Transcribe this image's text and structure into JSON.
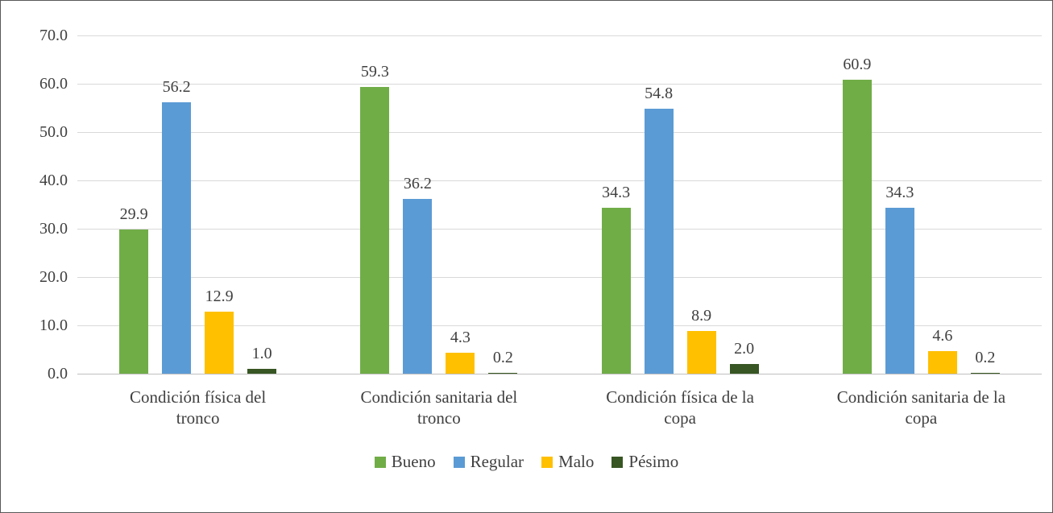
{
  "chart_data": {
    "type": "bar",
    "categories": [
      "Condición física del tronco",
      "Condición sanitaria del tronco",
      "Condición física de la copa",
      "Condición sanitaria de la copa"
    ],
    "series": [
      {
        "name": "Bueno",
        "color": "#70AD47",
        "values": [
          29.9,
          59.3,
          34.3,
          60.9
        ]
      },
      {
        "name": "Regular",
        "color": "#5B9BD5",
        "values": [
          56.2,
          36.2,
          54.8,
          34.3
        ]
      },
      {
        "name": "Malo",
        "color": "#FFC000",
        "values": [
          12.9,
          4.3,
          8.9,
          4.6
        ]
      },
      {
        "name": "Pésimo",
        "color": "#375623",
        "values": [
          1.0,
          0.2,
          2.0,
          0.2
        ]
      }
    ],
    "ylim": [
      0,
      70
    ],
    "ytick_step": 10,
    "ytick_labels": [
      "0.0",
      "10.0",
      "20.0",
      "30.0",
      "40.0",
      "50.0",
      "60.0",
      "70.0"
    ],
    "grid": "horizontal",
    "legend_position": "bottom",
    "data_labels": true
  }
}
